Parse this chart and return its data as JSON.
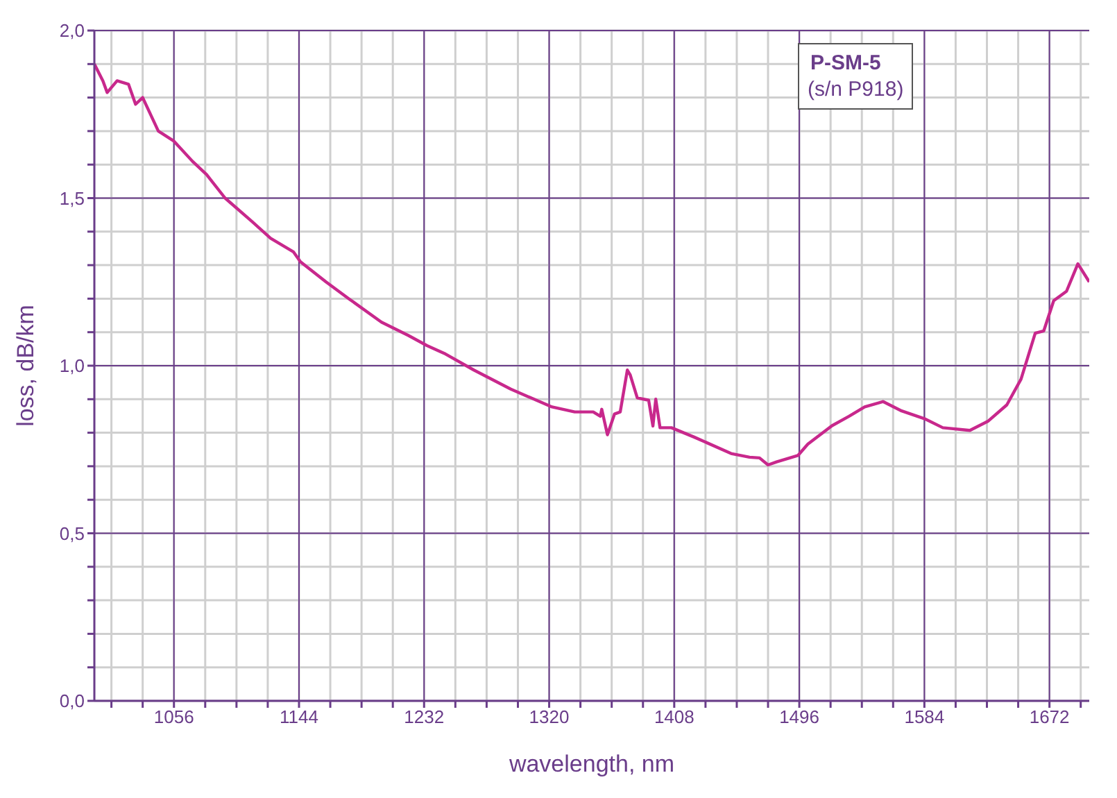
{
  "chart_data": {
    "type": "line",
    "xlabel": "wavelength, nm",
    "ylabel": "loss, dB/km",
    "annotations": [
      "P-SM-5",
      "(s/n P918)"
    ],
    "x": [
      1000,
      1006,
      1009,
      1016,
      1024,
      1029,
      1034,
      1045,
      1056,
      1069,
      1079,
      1092,
      1111,
      1124,
      1140,
      1145,
      1163,
      1179,
      1202,
      1221,
      1234,
      1247,
      1267,
      1293,
      1322,
      1338,
      1351,
      1356,
      1357,
      1361,
      1366,
      1370,
      1375,
      1377,
      1382,
      1390,
      1393,
      1395,
      1398,
      1406,
      1422,
      1448,
      1461,
      1468,
      1474,
      1480,
      1495,
      1502,
      1519,
      1531,
      1542,
      1555,
      1568,
      1584,
      1597,
      1616,
      1629,
      1642,
      1652,
      1662,
      1668,
      1675,
      1684,
      1692,
      1700
    ],
    "series": [
      {
        "color": "#c8288c",
        "values": [
          1.9,
          1.85,
          1.815,
          1.85,
          1.84,
          1.78,
          1.8,
          1.7,
          1.67,
          1.61,
          1.57,
          1.5,
          1.43,
          1.38,
          1.34,
          1.31,
          1.25,
          1.2,
          1.13,
          1.09,
          1.06,
          1.035,
          0.987,
          0.93,
          0.877,
          0.862,
          0.862,
          0.849,
          0.87,
          0.794,
          0.856,
          0.862,
          0.987,
          0.973,
          0.904,
          0.897,
          0.82,
          0.9,
          0.815,
          0.815,
          0.787,
          0.738,
          0.727,
          0.725,
          0.704,
          0.713,
          0.732,
          0.766,
          0.821,
          0.849,
          0.877,
          0.893,
          0.865,
          0.842,
          0.815,
          0.807,
          0.835,
          0.883,
          0.96,
          1.097,
          1.104,
          1.194,
          1.222,
          1.304,
          1.25
        ]
      }
    ],
    "xlim": [
      1000,
      1700
    ],
    "xticks": [
      {
        "value": 1012,
        "label": null
      },
      {
        "value": 1034,
        "label": null
      },
      1056,
      {
        "value": 1078,
        "label": null
      },
      {
        "value": 1100,
        "label": null
      },
      {
        "value": 1122,
        "label": null
      },
      1144,
      {
        "value": 1166,
        "label": null
      },
      {
        "value": 1188,
        "label": null
      },
      {
        "value": 1210,
        "label": null
      },
      1232,
      {
        "value": 1254,
        "label": null
      },
      {
        "value": 1276,
        "label": null
      },
      {
        "value": 1298,
        "label": null
      },
      1320,
      {
        "value": 1342,
        "label": null
      },
      {
        "value": 1364,
        "label": null
      },
      {
        "value": 1386,
        "label": null
      },
      1408,
      {
        "value": 1430,
        "label": null
      },
      {
        "value": 1452,
        "label": null
      },
      {
        "value": 1474,
        "label": null
      },
      1496,
      {
        "value": 1518,
        "label": null
      },
      {
        "value": 1540,
        "label": null
      },
      {
        "value": 1562,
        "label": null
      },
      1584,
      {
        "value": 1606,
        "label": null
      },
      {
        "value": 1628,
        "label": null
      },
      {
        "value": 1650,
        "label": null
      },
      1672,
      {
        "value": 1694,
        "label": null
      }
    ],
    "ylim": [
      0,
      2
    ],
    "yticks": [
      {
        "value": 0,
        "label": "0,0"
      },
      {
        "value": 0.1,
        "label": null
      },
      {
        "value": 0.2,
        "label": null
      },
      {
        "value": 0.3,
        "label": null
      },
      {
        "value": 0.4,
        "label": null
      },
      {
        "value": 0.5,
        "label": "0,5"
      },
      {
        "value": 0.6,
        "label": null
      },
      {
        "value": 0.7,
        "label": null
      },
      {
        "value": 0.8,
        "label": null
      },
      {
        "value": 0.9,
        "label": null
      },
      {
        "value": 1,
        "label": "1,0"
      },
      {
        "value": 1.1,
        "label": null
      },
      {
        "value": 1.2,
        "label": null
      },
      {
        "value": 1.3,
        "label": null
      },
      {
        "value": 1.4,
        "label": null
      },
      {
        "value": 1.5,
        "label": "1,5"
      },
      {
        "value": 1.6,
        "label": null
      },
      {
        "value": 1.7,
        "label": null
      },
      {
        "value": 1.8,
        "label": null
      },
      {
        "value": 1.9,
        "label": null
      },
      {
        "value": 2,
        "label": "2,0"
      }
    ],
    "grid": true,
    "legend": false,
    "marker": "none",
    "line_style": "solid"
  }
}
